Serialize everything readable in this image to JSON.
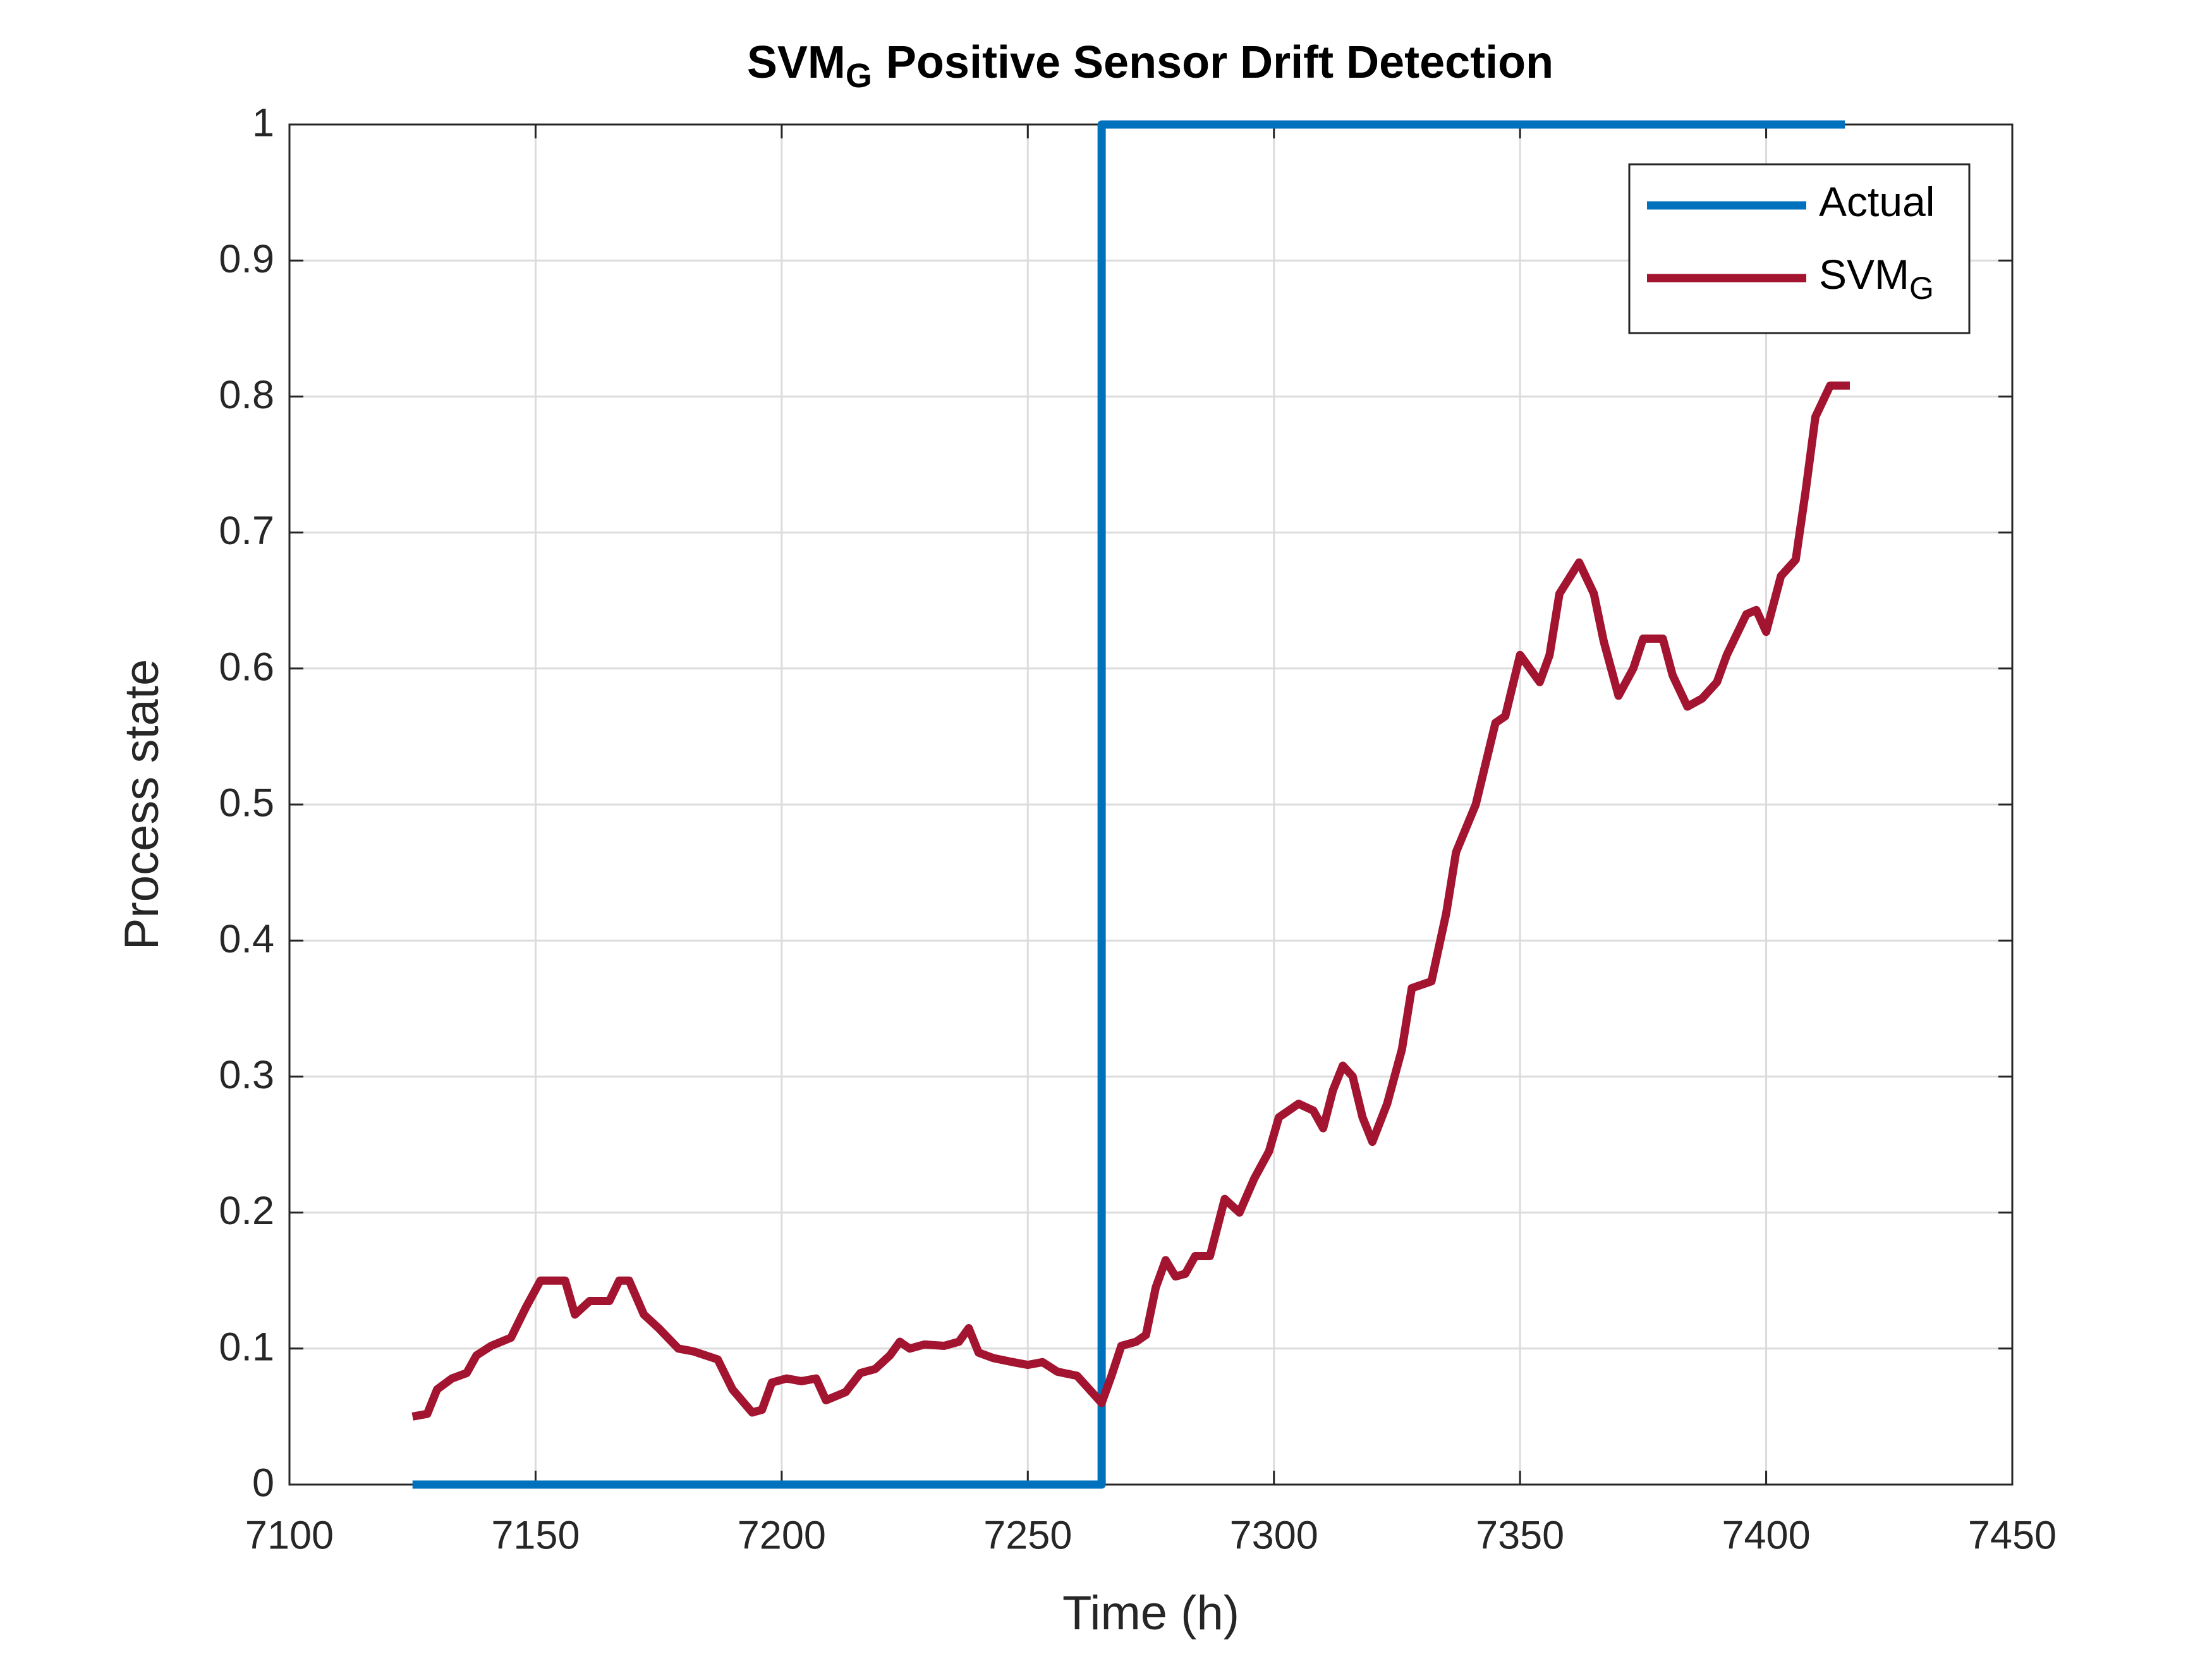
{
  "chart_data": {
    "type": "line",
    "title": "SVM",
    "title_subscript": "G",
    "title_rest": "Positive Sensor Drift Detection",
    "xlabel": "Time (h)",
    "ylabel": "Process state",
    "xlim": [
      7100,
      7450
    ],
    "xticks": [
      7100,
      7150,
      7200,
      7250,
      7300,
      7350,
      7400,
      7450
    ],
    "ylim": [
      0,
      1
    ],
    "yticks": [
      0,
      0.1,
      0.2,
      0.3,
      0.4,
      0.5,
      0.6,
      0.7,
      0.8,
      0.9,
      1
    ],
    "grid": true,
    "legend": "northeast",
    "series": [
      {
        "name": "Actual",
        "color": "#0072bd",
        "x": [
          7125,
          7265,
          7265,
          7416
        ],
        "values": [
          0,
          0,
          1,
          1
        ]
      },
      {
        "name": "SVM",
        "name_subscript": "G",
        "color": "#a2142f",
        "x": [
          7125,
          7128,
          7130,
          7133,
          7136,
          7138,
          7141,
          7145,
          7148,
          7151,
          7154,
          7156,
          7158,
          7161,
          7165,
          7167,
          7169,
          7172,
          7175,
          7179,
          7182,
          7187,
          7190,
          7194,
          7196,
          7198,
          7201,
          7204,
          7207,
          7209,
          7213,
          7216,
          7219,
          7222,
          7224,
          7226,
          7229,
          7233,
          7236,
          7238,
          7240,
          7243,
          7247,
          7250,
          7253,
          7256,
          7260,
          7263,
          7265,
          7267,
          7269,
          7272,
          7274,
          7276,
          7278,
          7280,
          7282,
          7284,
          7287,
          7290,
          7293,
          7296,
          7299,
          7301,
          7305,
          7308,
          7310,
          7312,
          7314,
          7316,
          7318,
          7320,
          7323,
          7326,
          7328,
          7332,
          7335,
          7337,
          7341,
          7343,
          7345,
          7347,
          7350,
          7354,
          7356,
          7358,
          7362,
          7365,
          7367,
          7370,
          7373,
          7375,
          7379,
          7381,
          7384,
          7387,
          7390,
          7392,
          7396,
          7398,
          7400,
          7403,
          7406,
          7408,
          7410,
          7413,
          7417
        ],
        "values": [
          0.05,
          0.052,
          0.07,
          0.078,
          0.082,
          0.095,
          0.102,
          0.108,
          0.13,
          0.15,
          0.15,
          0.15,
          0.125,
          0.135,
          0.135,
          0.15,
          0.15,
          0.125,
          0.115,
          0.1,
          0.098,
          0.092,
          0.07,
          0.053,
          0.055,
          0.075,
          0.078,
          0.076,
          0.078,
          0.062,
          0.068,
          0.082,
          0.085,
          0.095,
          0.105,
          0.1,
          0.103,
          0.102,
          0.105,
          0.115,
          0.097,
          0.093,
          0.09,
          0.088,
          0.09,
          0.083,
          0.08,
          0.068,
          0.06,
          0.08,
          0.102,
          0.105,
          0.11,
          0.145,
          0.165,
          0.153,
          0.155,
          0.168,
          0.168,
          0.21,
          0.2,
          0.225,
          0.245,
          0.27,
          0.28,
          0.275,
          0.262,
          0.29,
          0.308,
          0.3,
          0.27,
          0.252,
          0.28,
          0.32,
          0.365,
          0.37,
          0.42,
          0.465,
          0.5,
          0.53,
          0.56,
          0.565,
          0.61,
          0.59,
          0.61,
          0.655,
          0.678,
          0.655,
          0.62,
          0.58,
          0.6,
          0.622,
          0.622,
          0.595,
          0.572,
          0.578,
          0.59,
          0.61,
          0.64,
          0.643,
          0.627,
          0.668,
          0.68,
          0.73,
          0.785,
          0.808,
          0.808
        ]
      }
    ]
  }
}
